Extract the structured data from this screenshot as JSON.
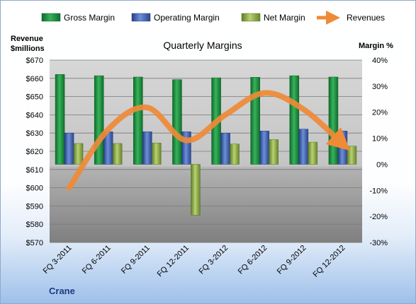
{
  "company": "Crane",
  "chart_data": {
    "type": "bar",
    "title": "Quarterly Margins",
    "categories": [
      "FQ 3-2011",
      "FQ 6-2011",
      "FQ 9-2011",
      "FQ 12-2011",
      "FQ 3-2012",
      "FQ 6-2012",
      "FQ 9-2012",
      "FQ 12-2012"
    ],
    "series": [
      {
        "name": "Gross Margin",
        "axis": "right",
        "type": "bar",
        "color": "#1f8a3c",
        "values": [
          34.5,
          34.0,
          33.5,
          32.5,
          33.2,
          33.4,
          34.0,
          33.5
        ]
      },
      {
        "name": "Operating Margin",
        "axis": "right",
        "type": "bar",
        "color": "#3d5fae",
        "values": [
          12.0,
          12.5,
          12.5,
          12.5,
          12.0,
          12.8,
          13.5,
          12.8
        ]
      },
      {
        "name": "Net Margin",
        "axis": "right",
        "type": "bar",
        "color": "#8fae4a",
        "values": [
          8.0,
          8.0,
          8.2,
          -19.5,
          7.8,
          9.5,
          8.5,
          7.0
        ]
      },
      {
        "name": "Revenues",
        "axis": "left",
        "type": "line",
        "color": "#ef8a37",
        "values": [
          600,
          632,
          644,
          626,
          640,
          652,
          643,
          624
        ]
      }
    ],
    "left_axis": {
      "label_line1": "Revenue",
      "label_line2": "$millions",
      "min": 570,
      "max": 670,
      "step": 10,
      "ticks": [
        "$670",
        "$660",
        "$650",
        "$640",
        "$630",
        "$620",
        "$610",
        "$600",
        "$590",
        "$580",
        "$570"
      ]
    },
    "right_axis": {
      "label": "Margin %",
      "min": -30,
      "max": 40,
      "step": 10,
      "ticks": [
        "40%",
        "30%",
        "20%",
        "10%",
        "0%",
        "-10%",
        "-20%",
        "-30%"
      ]
    },
    "grid": true,
    "legend_position": "top"
  }
}
